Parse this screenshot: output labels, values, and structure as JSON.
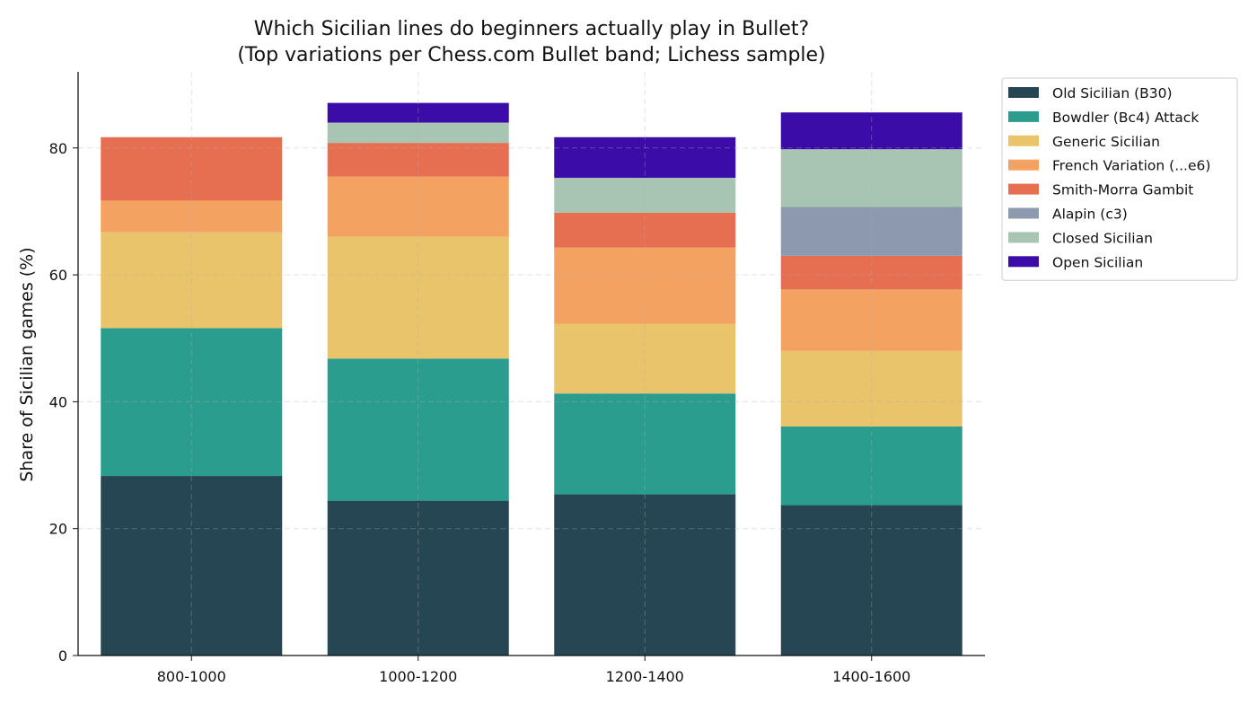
{
  "chart_data": {
    "type": "bar",
    "stacked": true,
    "title": "Which Sicilian lines do beginners actually play in Bullet?",
    "subtitle": "(Top variations per Chess.com Bullet band; Lichess sample)",
    "xlabel": "",
    "ylabel": "Share of Sicilian games (%)",
    "ylim": [
      0,
      92
    ],
    "yticks": [
      0,
      20,
      40,
      60,
      80
    ],
    "grid": true,
    "legend_position": "outside-top-right",
    "categories": [
      "800-1000",
      "1000-1200",
      "1200-1400",
      "1400-1600"
    ],
    "series": [
      {
        "name": "Old Sicilian (B30)",
        "color": "#264653",
        "values": [
          28.3,
          24.4,
          25.4,
          23.7
        ]
      },
      {
        "name": "Bowdler (Bc4) Attack",
        "color": "#2a9d8f",
        "values": [
          23.3,
          22.4,
          15.9,
          12.4
        ]
      },
      {
        "name": "Generic Sicilian",
        "color": "#e9c46a",
        "values": [
          15.1,
          19.2,
          11.0,
          11.9
        ]
      },
      {
        "name": "French Variation (...e6)",
        "color": "#f4a261",
        "values": [
          5.0,
          9.5,
          12.0,
          9.7
        ]
      },
      {
        "name": "Smith-Morra Gambit",
        "color": "#e76f51",
        "values": [
          10.0,
          5.3,
          5.5,
          5.3
        ]
      },
      {
        "name": "Alapin (c3)",
        "color": "#8d99ae",
        "values": [
          0,
          0,
          0,
          7.7
        ]
      },
      {
        "name": "Closed Sicilian",
        "color": "#a8c5b4",
        "values": [
          0,
          3.2,
          5.5,
          9.1
        ]
      },
      {
        "name": "Open Sicilian",
        "color": "#3c0ca9",
        "values": [
          0,
          3.1,
          6.4,
          5.8
        ]
      }
    ]
  }
}
